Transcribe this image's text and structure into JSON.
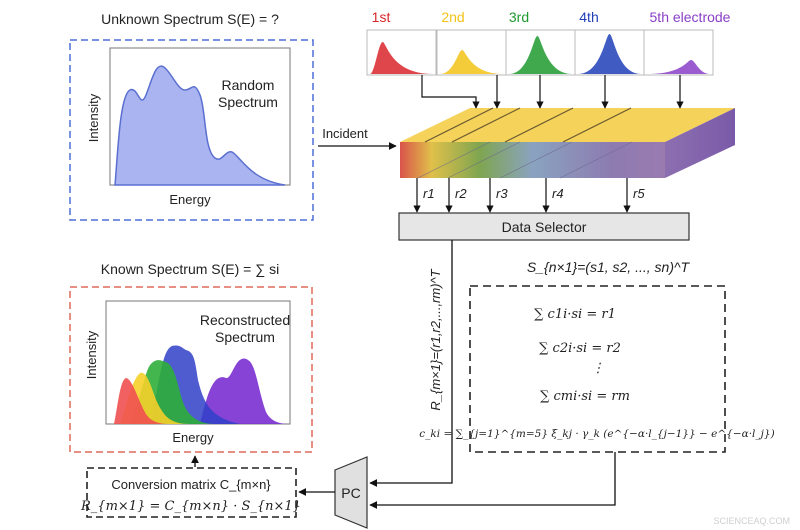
{
  "unknown": {
    "title": "Unknown Spectrum S(E) = ?",
    "label_line1": "Random",
    "label_line2": "Spectrum",
    "y_axis": "Intensity",
    "x_axis": "Energy",
    "border_color": "#4f6fd8"
  },
  "incident": "Incident",
  "electrodes": [
    {
      "label": "1st",
      "color": "#d9262b"
    },
    {
      "label": "2nd",
      "color": "#f2c318"
    },
    {
      "label": "3rd",
      "color": "#1f9a2e"
    },
    {
      "label": "4th",
      "color": "#1f3fb8"
    },
    {
      "label": "5th electrode",
      "color": "#8a3fc8"
    }
  ],
  "currents": [
    "r1",
    "r2",
    "r3",
    "r4",
    "r5"
  ],
  "data_selector": "Data Selector",
  "r_vector": "R_{m×1}=(r1,r2,...,rm)^T",
  "s_vector": "S_{n×1}=(s1, s2, ..., sn)^T",
  "equations": [
    "∑ c1i·si = r1",
    "∑ c2i·si = r2",
    "⋮",
    "∑ cmi·si = rm",
    "c_ki = ∑_{j=1}^{m=5} ξ_kj · γ_k (e^{−α·l_{j−1}} − e^{−α·l_j})"
  ],
  "known": {
    "title": "Known Spectrum S(E) = ∑ si",
    "label_line1": "Reconstructed",
    "label_line2": "Spectrum",
    "y_axis": "Intensity",
    "x_axis": "Energy",
    "border_color": "#e06a5a"
  },
  "conversion": {
    "line1": "Conversion matrix C_{m×n}",
    "line2": "R_{m×1} = C_{m×n} · S_{n×1}"
  },
  "pc": "PC",
  "watermark": "SCIENCEAQ.COM"
}
